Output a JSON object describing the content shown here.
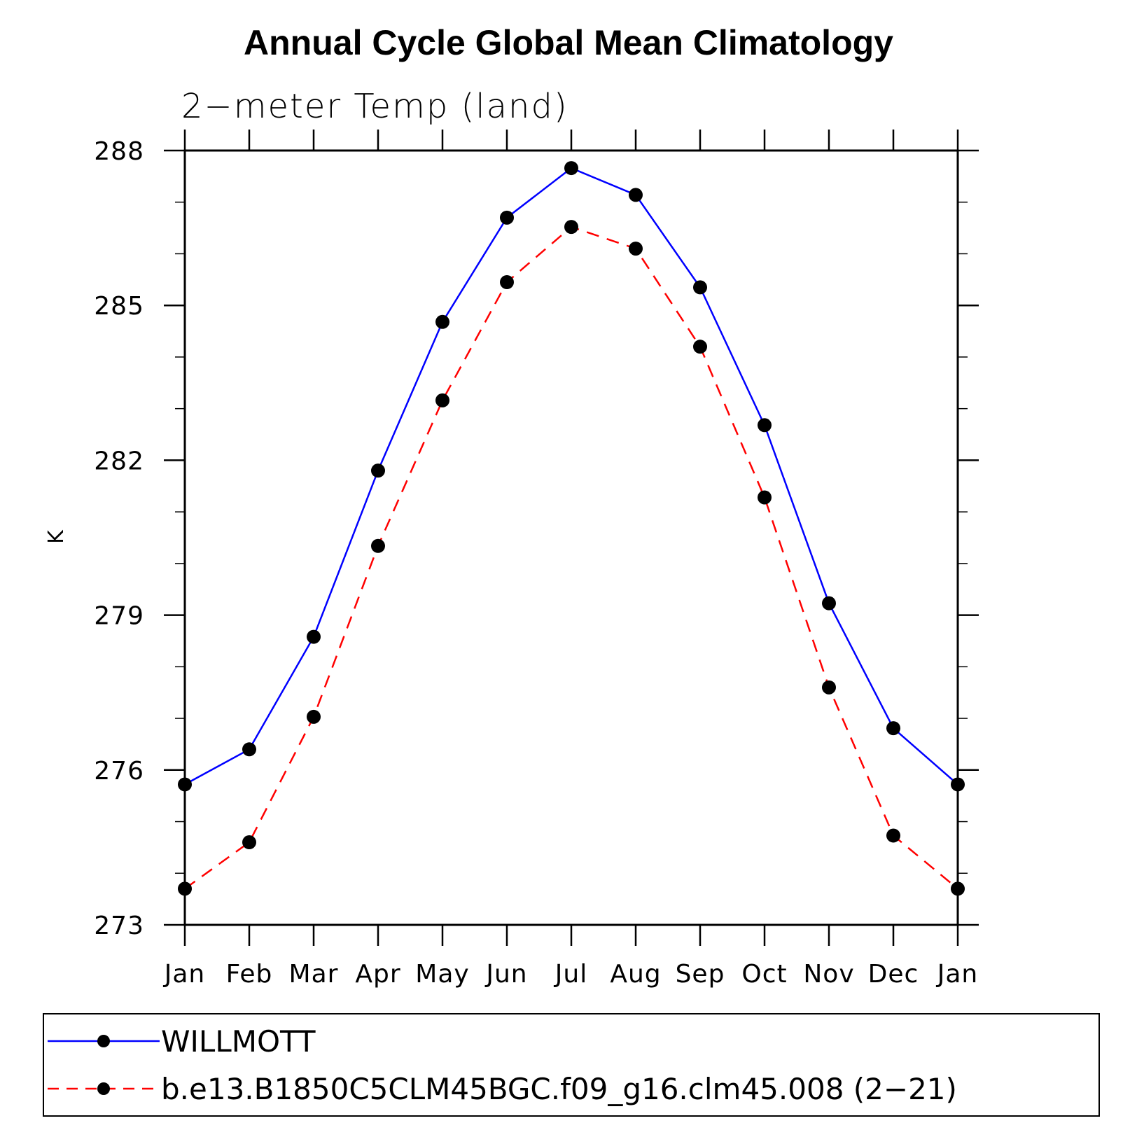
{
  "chart_data": {
    "type": "line",
    "title": "Annual Cycle Global Mean Climatology",
    "subtitle": "2−meter Temp (land)",
    "xlabel": "",
    "ylabel": "K",
    "categories": [
      "Jan",
      "Feb",
      "Mar",
      "Apr",
      "May",
      "Jun",
      "Jul",
      "Aug",
      "Sep",
      "Oct",
      "Nov",
      "Dec",
      "Jan"
    ],
    "ylim": [
      273,
      288
    ],
    "yticks": [
      "288",
      "285",
      "282",
      "279",
      "276",
      "273"
    ],
    "ytick_values": [
      288,
      285,
      282,
      279,
      276,
      273
    ],
    "grid": false,
    "legend_position": "bottom",
    "series": [
      {
        "name": "WILLMOTT",
        "color": "#0000ff",
        "line_style": "solid",
        "marker": "filled-circle",
        "values": [
          275.72,
          276.4,
          278.58,
          281.8,
          284.68,
          286.7,
          287.66,
          287.14,
          285.35,
          282.68,
          279.23,
          276.81,
          275.72
        ]
      },
      {
        "name": "b.e13.B1850C5CLM45BGC.f09_g16.clm45.008 (2−21)",
        "color": "#ff0000",
        "line_style": "dashed",
        "marker": "filled-circle",
        "values": [
          273.7,
          274.6,
          277.03,
          280.34,
          283.16,
          285.45,
          286.52,
          286.1,
          284.2,
          281.28,
          277.6,
          274.73,
          273.7
        ]
      }
    ]
  }
}
